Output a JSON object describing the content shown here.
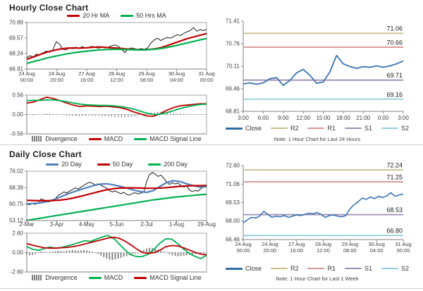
{
  "page": {
    "background": "#ffffff",
    "divider_color": "#c9cdd4",
    "axis_color": "#808080",
    "box_color": "#a6a6a6",
    "tick_text_color": "#404040",
    "pivot_label_color": "#1a1a1a"
  },
  "panels": {
    "hourly": {
      "title": "Hourly Close Chart"
    },
    "daily": {
      "title": "Daily Close Chart"
    },
    "hourly_pivot": {
      "note": "Note: 1 Hour Chart for Last 24 Hours"
    },
    "weekly_pivot": {
      "note": "Note: 1 Hour Chart for Last 1 Week"
    }
  },
  "chart_data": [
    {
      "id": "hourly_close",
      "type": "line",
      "title": "Hourly Close Chart",
      "ylim": [
        66.91,
        70.89
      ],
      "yticks": [
        70.89,
        69.57,
        68.24,
        66.91
      ],
      "xlabels": [
        [
          "24 Aug",
          "00:00"
        ],
        [
          "24 Aug",
          "20:00"
        ],
        [
          "27 Aug",
          "16:00"
        ],
        [
          "28 Aug",
          "12:00"
        ],
        [
          "29 Aug",
          "08:00"
        ],
        [
          "30 Aug",
          "04:00"
        ],
        [
          "31 Aug",
          "00:00"
        ]
      ],
      "legend": [
        {
          "label": "20 Hr MA",
          "color": "#c00000",
          "type": "line"
        },
        {
          "label": "50 Hrs MA",
          "color": "#00b050",
          "type": "line"
        }
      ],
      "series": [
        {
          "name": "Close",
          "color": "#1a1a1a",
          "width": 1,
          "values": [
            67.9,
            68.05,
            67.95,
            68.2,
            68.1,
            68.3,
            68.45,
            68.35,
            68.55,
            69.25,
            69.05,
            68.6,
            68.55,
            68.7,
            68.65,
            68.78,
            68.7,
            68.82,
            68.72,
            68.78,
            68.85,
            68.75,
            68.7,
            68.78,
            68.72,
            68.8,
            68.9,
            68.98,
            68.85,
            68.6,
            68.32,
            68.62,
            68.72,
            68.65,
            68.6,
            68.66,
            68.6,
            68.72,
            69.15,
            69.4,
            69.55,
            69.35,
            69.5,
            69.62,
            69.55,
            69.7,
            69.85,
            69.78,
            69.95,
            70.1,
            70.2,
            70.45,
            70.15,
            70.28,
            70.2,
            70.3
          ]
        },
        {
          "name": "20 Hr MA",
          "color": "#c00000",
          "width": 2.2,
          "values": [
            67.75,
            67.95,
            68.15,
            68.35,
            68.5,
            68.62,
            68.7,
            68.72,
            68.7,
            68.73,
            68.78,
            68.8,
            68.76,
            68.72,
            68.68,
            68.63,
            68.58,
            68.55,
            68.57,
            68.62,
            68.72,
            68.9,
            69.1,
            69.3,
            69.5,
            69.65,
            69.8,
            69.95
          ]
        },
        {
          "name": "50 Hrs MA",
          "color": "#00b050",
          "width": 2.2,
          "values": [
            67.4,
            67.55,
            67.7,
            67.85,
            67.98,
            68.1,
            68.2,
            68.3,
            68.38,
            68.44,
            68.5,
            68.55,
            68.58,
            68.6,
            68.6,
            68.58,
            68.56,
            68.55,
            68.56,
            68.6,
            68.66,
            68.75,
            68.87,
            69.0,
            69.13,
            69.27,
            69.4,
            69.52
          ]
        }
      ],
      "macd": {
        "ylim": [
          -0.56,
          0.56
        ],
        "yticks": [
          0.56,
          0.0,
          -0.56
        ],
        "zero_line": true,
        "legend": [
          {
            "label": "Divergence",
            "color": "#7f7f7f",
            "type": "block"
          },
          {
            "label": "MACD",
            "color": "#c00000",
            "type": "line"
          },
          {
            "label": "MACD Signal Line",
            "color": "#00b050",
            "type": "line"
          }
        ],
        "bars": {
          "name": "Divergence",
          "color": "#808080",
          "values": [
            -0.01,
            -0.02,
            -0.02,
            -0.01,
            0.01,
            0.02,
            0.03,
            0.03,
            0.02,
            0.01,
            -0.01,
            -0.02,
            -0.03,
            -0.04,
            -0.04,
            -0.05,
            -0.05,
            -0.04,
            -0.04,
            -0.03,
            -0.03,
            -0.04,
            -0.04,
            -0.05,
            -0.05,
            -0.06,
            -0.06,
            -0.07,
            -0.07,
            -0.08,
            -0.08,
            -0.07,
            -0.06,
            -0.05,
            -0.03,
            -0.01,
            0.02,
            0.04,
            0.06,
            0.07,
            0.08,
            0.08,
            0.07,
            0.06,
            0.05,
            0.04,
            0.03,
            0.03,
            0.02,
            0.02,
            0.02,
            0.01,
            0.01,
            0.01,
            0.01,
            0.01
          ]
        },
        "series": [
          {
            "name": "MACD",
            "color": "#c00000",
            "width": 1.8,
            "values": [
              0.33,
              0.36,
              0.43,
              0.5,
              0.46,
              0.4,
              0.33,
              0.27,
              0.23,
              0.25,
              0.24,
              0.23,
              0.24,
              0.22,
              0.2,
              0.15,
              0.08,
              0.02,
              -0.04,
              -0.05,
              0.02,
              0.12,
              0.2,
              0.25,
              0.27,
              0.29,
              0.31,
              0.31
            ]
          },
          {
            "name": "MACD Signal Line",
            "color": "#00b050",
            "width": 1.8,
            "values": [
              0.4,
              0.41,
              0.41,
              0.42,
              0.42,
              0.4,
              0.37,
              0.33,
              0.3,
              0.28,
              0.27,
              0.26,
              0.26,
              0.25,
              0.23,
              0.2,
              0.16,
              0.1,
              0.04,
              0.0,
              0.01,
              0.05,
              0.11,
              0.17,
              0.22,
              0.26,
              0.29,
              0.3
            ]
          }
        ]
      }
    },
    {
      "id": "hourly_pivot",
      "type": "line",
      "note": "Note: 1 Hour Chart for Last 24 Hours",
      "ylim": [
        68.81,
        71.41
      ],
      "yticks": [
        71.41,
        70.76,
        70.11,
        69.46,
        68.81
      ],
      "xlabels": [
        "3:00",
        "6:00",
        "9:00",
        "12:00",
        "15:00",
        "18:00",
        "21:00",
        "0:00",
        "3:00"
      ],
      "legend": [
        {
          "label": "Close",
          "color": "#2e6da4",
          "type": "line"
        },
        {
          "label": "R2",
          "color": "#c4be8c",
          "type": "line"
        },
        {
          "label": "R1",
          "color": "#da9694",
          "type": "line"
        },
        {
          "label": "S1",
          "color": "#9c8db3",
          "type": "line"
        },
        {
          "label": "S2",
          "color": "#93cddd",
          "type": "line"
        }
      ],
      "hlines": [
        {
          "name": "R2",
          "value": 71.06,
          "label": "71.06",
          "color": "#c4be8c"
        },
        {
          "name": "R1",
          "value": 70.66,
          "label": "70.66",
          "color": "#da9694"
        },
        {
          "name": "S1",
          "value": 69.71,
          "label": "69.71",
          "color": "#9c8db3"
        },
        {
          "name": "S2",
          "value": 69.16,
          "label": "69.16",
          "color": "#93cddd"
        }
      ],
      "series": [
        {
          "name": "Close",
          "color": "#3a74b3",
          "width": 1.8,
          "values": [
            69.6,
            69.63,
            69.59,
            69.63,
            69.75,
            69.78,
            69.56,
            69.7,
            69.92,
            70.02,
            69.85,
            69.62,
            69.66,
            69.95,
            70.42,
            70.18,
            70.1,
            70.05,
            70.1,
            70.08,
            70.12,
            70.08,
            70.12,
            70.18,
            70.26
          ]
        }
      ]
    },
    {
      "id": "daily_close",
      "type": "line",
      "title": "Daily Close Chart",
      "ylim": [
        53.12,
        76.02
      ],
      "yticks": [
        76.02,
        68.39,
        60.75,
        53.12
      ],
      "xlabels": [
        "2-Mar",
        "3-Apr",
        "4-May",
        "5-Jun",
        "2-Jul",
        "1-Aug",
        "29-Aug"
      ],
      "legend": [
        {
          "label": "20 Day",
          "color": "#4f81bd",
          "type": "line"
        },
        {
          "label": "50 Day",
          "color": "#c00000",
          "type": "line"
        },
        {
          "label": "200 Day",
          "color": "#00b050",
          "type": "line"
        }
      ],
      "series": [
        {
          "name": "Close",
          "color": "#1a1a1a",
          "width": 1,
          "values": [
            60.8,
            60.4,
            61.1,
            60.6,
            61.3,
            63.2,
            62.7,
            61.7,
            61.9,
            62.6,
            63.3,
            64.8,
            65.6,
            66.4,
            65.9,
            66.8,
            67.5,
            68.3,
            67.7,
            68.6,
            69.4,
            70.3,
            70.9,
            70.4,
            69.7,
            70.2,
            69.5,
            68.8,
            68.1,
            67.0,
            66.4,
            66.9,
            66.1,
            65.6,
            66.2,
            65.3,
            64.9,
            65.7,
            66.0,
            65.5,
            65.9,
            66.3,
            71.2,
            74.5,
            75.4,
            74.7,
            73.6,
            74.2,
            72.8,
            71.0,
            69.9,
            70.7,
            70.1,
            70.5,
            69.4,
            68.7,
            69.2,
            67.3,
            66.6,
            67.1,
            66.8,
            67.9,
            68.9,
            69.7
          ]
        },
        {
          "name": "20 Day",
          "color": "#4f81bd",
          "width": 2.2,
          "values": [
            60.9,
            61.0,
            61.3,
            61.9,
            62.8,
            64.0,
            65.3,
            66.4,
            67.4,
            68.4,
            69.3,
            70.0,
            70.2,
            69.7,
            69.0,
            68.2,
            67.3,
            66.6,
            66.2,
            67.0,
            69.0,
            70.8,
            71.6,
            71.2,
            70.2,
            69.3,
            68.7,
            68.8
          ]
        },
        {
          "name": "50 Day",
          "color": "#c00000",
          "width": 2.2,
          "values": [
            62.5,
            62.4,
            62.3,
            62.3,
            62.4,
            62.6,
            63.0,
            63.6,
            64.3,
            65.1,
            65.9,
            66.7,
            67.4,
            67.9,
            68.2,
            68.3,
            68.3,
            68.2,
            68.1,
            68.1,
            68.2,
            68.4,
            68.7,
            69.0,
            69.2,
            69.3,
            69.3,
            69.4
          ]
        },
        {
          "name": "200 Day",
          "color": "#00b050",
          "width": 2.2,
          "values": [
            53.2,
            53.7,
            54.2,
            54.7,
            55.2,
            55.7,
            56.2,
            56.7,
            57.2,
            57.7,
            58.2,
            58.7,
            59.2,
            59.7,
            60.2,
            60.7,
            61.2,
            61.7,
            62.2,
            62.7,
            63.1,
            63.5,
            63.9,
            64.2,
            64.5,
            64.8,
            65.1,
            65.3
          ]
        }
      ],
      "macd": {
        "ylim": [
          -2.6,
          2.6
        ],
        "yticks": [
          2.6,
          0.0,
          -2.6
        ],
        "zero_line": true,
        "legend": [
          {
            "label": "Divergence",
            "color": "#7f7f7f",
            "type": "block"
          },
          {
            "label": "MACD",
            "color": "#00b050",
            "type": "line"
          },
          {
            "label": "MACD Signal Line",
            "color": "#c00000",
            "type": "line"
          }
        ],
        "bars": {
          "name": "Divergence",
          "color": "#808080",
          "values": [
            -0.25,
            -0.35,
            -0.3,
            -0.2,
            0.05,
            0.15,
            0.1,
            0.05,
            0.1,
            0.15,
            0.2,
            0.25,
            0.2,
            0.15,
            0.25,
            0.3,
            0.35,
            0.3,
            0.25,
            0.3,
            0.35,
            0.3,
            0.2,
            0.1,
            -0.05,
            -0.2,
            -0.4,
            -0.6,
            -0.8,
            -0.95,
            -1.0,
            -0.9,
            -0.8,
            -0.7,
            -0.55,
            -0.45,
            -0.35,
            -0.25,
            -0.15,
            -0.05,
            0.15,
            0.35,
            0.55,
            0.65,
            0.6,
            0.5,
            0.4,
            0.25,
            0.1,
            -0.05,
            -0.2,
            -0.35,
            -0.45,
            -0.5,
            -0.45,
            -0.4,
            -0.35,
            -0.3,
            -0.25,
            -0.2,
            -0.15,
            -0.1,
            -0.1,
            -0.05
          ]
        },
        "series": [
          {
            "name": "MACD",
            "color": "#00b050",
            "width": 1.8,
            "values": [
              0.8,
              0.45,
              0.3,
              0.55,
              0.75,
              0.6,
              0.7,
              0.9,
              1.1,
              1.35,
              1.6,
              1.5,
              1.8,
              2.1,
              2.3,
              1.9,
              1.1,
              0.3,
              -0.3,
              -0.55,
              -0.5,
              -0.2,
              0.5,
              1.3,
              1.85,
              1.8,
              1.2,
              0.5,
              -0.1,
              -0.5,
              -0.8,
              -0.35
            ]
          },
          {
            "name": "MACD Signal Line",
            "color": "#c00000",
            "width": 1.8,
            "values": [
              1.2,
              1.0,
              0.8,
              0.65,
              0.6,
              0.6,
              0.65,
              0.7,
              0.8,
              0.95,
              1.15,
              1.35,
              1.55,
              1.75,
              1.95,
              2.05,
              1.9,
              1.5,
              1.0,
              0.45,
              0.0,
              -0.1,
              0.0,
              0.35,
              0.8,
              0.95,
              0.9,
              0.65,
              0.35,
              0.05,
              -0.2,
              -0.3
            ]
          }
        ]
      }
    },
    {
      "id": "weekly_pivot",
      "type": "line",
      "note": "Note: 1 Hour Chart for Last 1 Week",
      "ylim": [
        66.46,
        72.6
      ],
      "yticks": [
        72.6,
        71.06,
        69.53,
        68.0,
        66.46
      ],
      "xlabels": [
        [
          "24 Aug",
          "00:00"
        ],
        [
          "24 Aug",
          "20:00"
        ],
        [
          "27 Aug",
          "16:00"
        ],
        [
          "28 Aug",
          "12:00"
        ],
        [
          "29 Aug",
          "08:00"
        ],
        [
          "30 Aug",
          "04:00"
        ],
        [
          "31 Aug",
          "00:00"
        ]
      ],
      "legend": [
        {
          "label": "Close",
          "color": "#2e6da4",
          "type": "line"
        },
        {
          "label": "R2",
          "color": "#c4be8c",
          "type": "line"
        },
        {
          "label": "R1",
          "color": "#da9694",
          "type": "line"
        },
        {
          "label": "S1",
          "color": "#9c8db3",
          "type": "line"
        },
        {
          "label": "S2",
          "color": "#93cddd",
          "type": "line"
        }
      ],
      "hlines": [
        {
          "name": "R2",
          "value": 72.24,
          "label": "72.24",
          "color": "#c4be8c"
        },
        {
          "name": "R1",
          "value": 71.25,
          "label": "71.25",
          "color": "#da9694"
        },
        {
          "name": "S1",
          "value": 68.53,
          "label": "68.53",
          "color": "#9c8db3"
        },
        {
          "name": "S2",
          "value": 66.8,
          "label": "66.80",
          "color": "#93cddd"
        }
      ],
      "series": [
        {
          "name": "Close",
          "color": "#3a74b3",
          "width": 1.6,
          "values": [
            67.85,
            68.1,
            68.3,
            68.25,
            68.4,
            68.8,
            68.55,
            68.3,
            68.4,
            68.35,
            68.45,
            68.3,
            68.4,
            68.5,
            68.45,
            68.55,
            68.65,
            68.6,
            68.7,
            68.55,
            68.3,
            68.45,
            68.5,
            68.4,
            68.35,
            68.45,
            69.0,
            69.35,
            69.6,
            69.9,
            69.8,
            70.0,
            69.85,
            70.05,
            69.95,
            70.1,
            70.35,
            70.05,
            70.15,
            70.25
          ]
        }
      ]
    }
  ]
}
